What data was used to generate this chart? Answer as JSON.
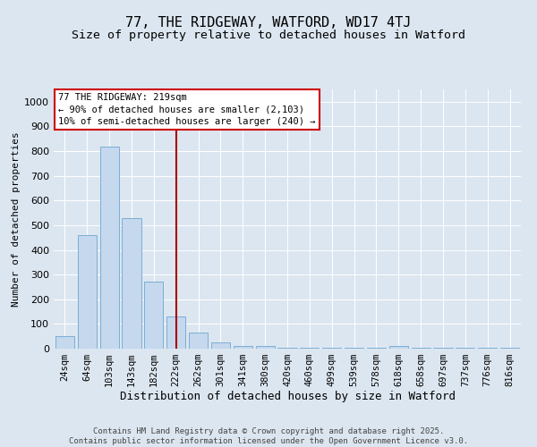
{
  "title1": "77, THE RIDGEWAY, WATFORD, WD17 4TJ",
  "title2": "Size of property relative to detached houses in Watford",
  "xlabel": "Distribution of detached houses by size in Watford",
  "ylabel": "Number of detached properties",
  "categories": [
    "24sqm",
    "64sqm",
    "103sqm",
    "143sqm",
    "182sqm",
    "222sqm",
    "262sqm",
    "301sqm",
    "341sqm",
    "380sqm",
    "420sqm",
    "460sqm",
    "499sqm",
    "539sqm",
    "578sqm",
    "618sqm",
    "658sqm",
    "697sqm",
    "737sqm",
    "776sqm",
    "816sqm"
  ],
  "values": [
    50,
    460,
    820,
    530,
    270,
    130,
    65,
    25,
    10,
    10,
    5,
    2,
    2,
    2,
    2,
    10,
    2,
    2,
    2,
    2,
    2
  ],
  "bar_color": "#c5d8ee",
  "bar_edge_color": "#7aaed6",
  "vline_x": 5,
  "vline_color": "#aa0000",
  "annotation_text": "77 THE RIDGEWAY: 219sqm\n← 90% of detached houses are smaller (2,103)\n10% of semi-detached houses are larger (240) →",
  "annotation_box_color": "#ffffff",
  "annotation_box_edge_color": "#cc0000",
  "ylim": [
    0,
    1050
  ],
  "yticks": [
    0,
    100,
    200,
    300,
    400,
    500,
    600,
    700,
    800,
    900,
    1000
  ],
  "bg_color": "#dce6f0",
  "plot_bg_color": "#dce6f0",
  "footer_text": "Contains HM Land Registry data © Crown copyright and database right 2025.\nContains public sector information licensed under the Open Government Licence v3.0.",
  "title1_fontsize": 11,
  "title2_fontsize": 9.5,
  "xlabel_fontsize": 9,
  "ylabel_fontsize": 8,
  "annotation_fontsize": 7.5,
  "footer_fontsize": 6.5,
  "tick_fontsize": 7.5,
  "ytick_fontsize": 8
}
